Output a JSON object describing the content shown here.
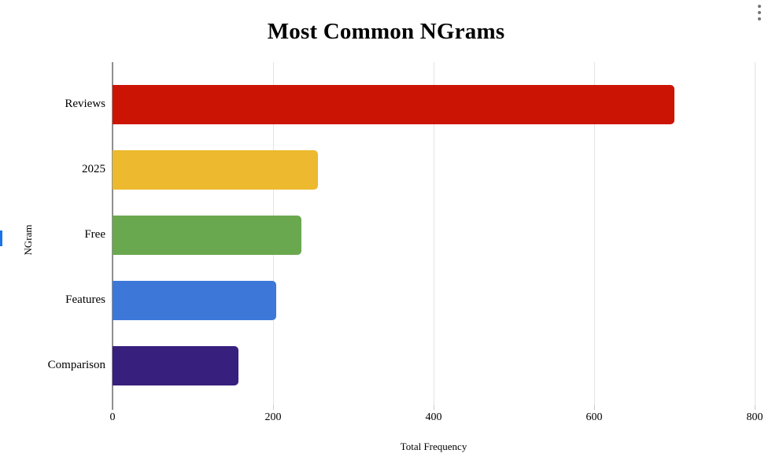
{
  "chart_data": {
    "type": "bar",
    "orientation": "horizontal",
    "title": "Most Common NGrams",
    "xlabel": "Total Frequency",
    "ylabel": "NGram",
    "categories": [
      "Reviews",
      "2025",
      "Free",
      "Features",
      "Comparison"
    ],
    "values": [
      700,
      256,
      235,
      204,
      157
    ],
    "bar_colors": [
      "#cc1405",
      "#edb92e",
      "#6aa84f",
      "#3d78d8",
      "#371f7e"
    ],
    "xlim": [
      0,
      800
    ],
    "xticks": [
      0,
      200,
      400,
      600,
      800
    ],
    "legend_position": "none",
    "grid": "vertical-light-gray-gridlines",
    "axis_color": "#8f8f8f",
    "gridline_color": "#e3e3e3"
  },
  "menu": {
    "icon": "kebab-menu-icon",
    "color": "#757575"
  },
  "artifacts": {
    "left_edge_fragment_color": "#1a73e8"
  }
}
